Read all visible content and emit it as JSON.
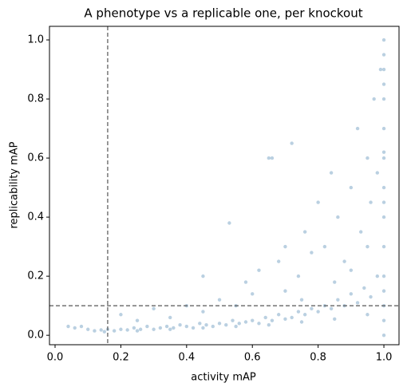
{
  "chart_data": {
    "type": "scatter",
    "title": "A phenotype vs a replicable one, per knockout",
    "xlabel": "activity mAP",
    "ylabel": "replicability mAP",
    "xlim": [
      -0.017,
      1.046
    ],
    "ylim": [
      -0.032,
      1.046
    ],
    "xticks": [
      {
        "value": 0,
        "label": "0.0"
      },
      0.2,
      0.4,
      0.6,
      0.8,
      {
        "value": 1,
        "label": "1.0"
      }
    ],
    "yticks": [
      {
        "value": 0,
        "label": "0.0"
      },
      0.2,
      0.4,
      0.6,
      0.8,
      {
        "value": 1,
        "label": "1.0"
      }
    ],
    "vlines": [
      0.16
    ],
    "hlines": [
      0.1
    ],
    "color": "#3a78a8",
    "x": [
      0.04,
      0.06,
      0.08,
      0.1,
      0.12,
      0.14,
      0.16,
      0.18,
      0.2,
      0.22,
      0.24,
      0.26,
      0.28,
      0.3,
      0.32,
      0.34,
      0.36,
      0.38,
      0.4,
      0.42,
      0.44,
      0.46,
      0.48,
      0.5,
      0.52,
      0.54,
      0.56,
      0.58,
      0.6,
      0.62,
      0.64,
      0.66,
      0.68,
      0.7,
      0.72,
      0.74,
      0.76,
      0.78,
      0.8,
      0.82,
      0.84,
      0.86,
      0.88,
      0.9,
      0.92,
      0.94,
      0.96,
      0.98,
      0.2,
      0.25,
      0.3,
      0.35,
      0.4,
      0.45,
      0.5,
      0.55,
      0.58,
      0.6,
      0.62,
      0.65,
      0.66,
      0.68,
      0.7,
      0.72,
      0.74,
      0.76,
      0.78,
      0.8,
      0.82,
      0.84,
      0.86,
      0.88,
      0.9,
      0.92,
      0.93,
      0.95,
      0.96,
      0.97,
      0.98,
      0.99,
      0.53,
      0.45,
      0.7,
      0.75,
      0.85,
      0.9,
      0.95,
      1,
      1,
      1,
      1,
      1,
      1,
      1,
      1,
      1,
      1,
      1,
      1,
      1,
      1,
      1,
      1,
      1,
      0.15,
      0.25,
      0.35,
      0.45,
      0.55,
      0.65,
      0.75,
      0.85,
      0.95
    ],
    "values": [
      0.03,
      0.025,
      0.03,
      0.02,
      0.015,
      0.018,
      0.02,
      0.015,
      0.02,
      0.018,
      0.025,
      0.02,
      0.03,
      0.02,
      0.025,
      0.03,
      0.025,
      0.035,
      0.03,
      0.025,
      0.04,
      0.035,
      0.03,
      0.04,
      0.035,
      0.05,
      0.04,
      0.045,
      0.05,
      0.04,
      0.06,
      0.05,
      0.07,
      0.055,
      0.06,
      0.08,
      0.07,
      0.09,
      0.08,
      0.1,
      0.09,
      0.12,
      0.1,
      0.14,
      0.11,
      0.16,
      0.13,
      0.2,
      0.07,
      0.05,
      0.09,
      0.06,
      0.1,
      0.08,
      0.12,
      0.1,
      0.18,
      0.14,
      0.22,
      0.6,
      0.6,
      0.25,
      0.3,
      0.65,
      0.2,
      0.35,
      0.28,
      0.45,
      0.3,
      0.55,
      0.4,
      0.25,
      0.5,
      0.7,
      0.35,
      0.6,
      0.45,
      0.8,
      0.55,
      0.9,
      0.38,
      0.2,
      0.15,
      0.12,
      0.18,
      0.22,
      0.3,
      0,
      0.05,
      0.1,
      0.15,
      0.2,
      0.3,
      0.4,
      0.5,
      0.6,
      0.7,
      0.8,
      0.85,
      0.9,
      0.95,
      1,
      0.62,
      0.45,
      0.012,
      0.015,
      0.02,
      0.025,
      0.03,
      0.035,
      0.045,
      0.055,
      0.07
    ]
  }
}
